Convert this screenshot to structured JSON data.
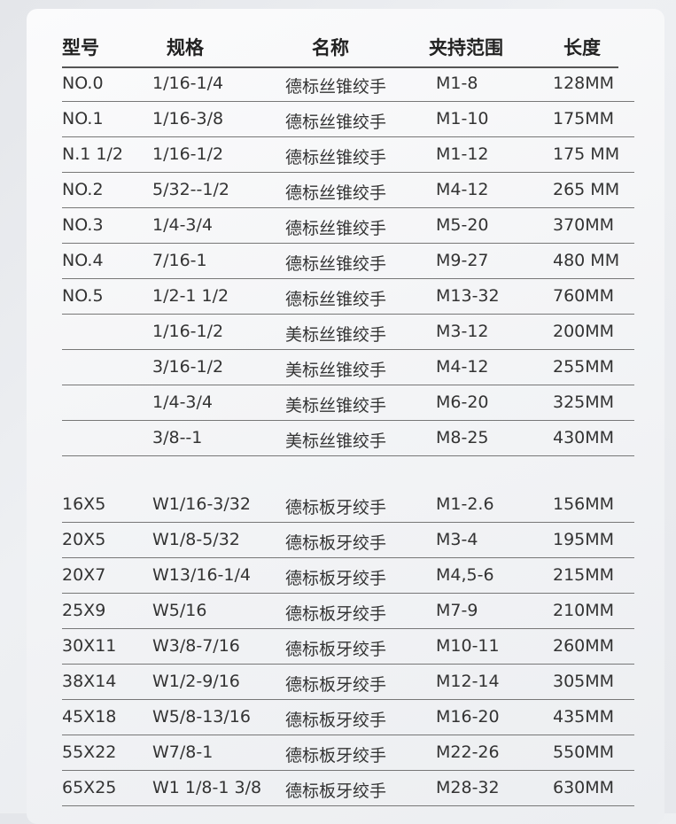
{
  "headers": [
    "型号",
    "规格",
    "名称",
    "夹持范围",
    "长度"
  ],
  "tap_wrenches": [
    [
      "NO.0",
      "1/16-1/4",
      "德标丝锥绞手",
      "M1-8",
      "128MM"
    ],
    [
      "NO.1",
      "1/16-3/8",
      "德标丝锥绞手",
      "M1-10",
      "175MM"
    ],
    [
      "N.1 1/2",
      "1/16-1/2",
      "德标丝锥绞手",
      "M1-12",
      "175 MM"
    ],
    [
      "NO.2",
      "5/32--1/2",
      "德标丝锥绞手",
      "M4-12",
      "265 MM"
    ],
    [
      "NO.3",
      "1/4-3/4",
      "德标丝锥绞手",
      "M5-20",
      "370MM"
    ],
    [
      "NO.4",
      "7/16-1",
      "德标丝锥绞手",
      "M9-27",
      "480 MM"
    ],
    [
      "NO.5",
      "1/2-1 1/2",
      "德标丝锥绞手",
      "M13-32",
      "760MM"
    ],
    [
      "",
      "1/16-1/2",
      "美标丝锥绞手",
      "M3-12",
      "200MM"
    ],
    [
      "",
      "3/16-1/2",
      "美标丝锥绞手",
      "M4-12",
      "255MM"
    ],
    [
      "",
      "1/4-3/4",
      "美标丝锥绞手",
      "M6-20",
      "325MM"
    ],
    [
      "",
      "3/8--1",
      "美标丝锥绞手",
      "M8-25",
      "430MM"
    ]
  ],
  "die_wrenches": [
    [
      "16X5",
      "W1/16-3/32",
      "德标板牙绞手",
      "M1-2.6",
      "156MM"
    ],
    [
      "20X5",
      "W1/8-5/32",
      "德标板牙绞手",
      "M3-4",
      "195MM"
    ],
    [
      "20X7",
      "W13/16-1/4",
      "德标板牙绞手",
      "M4,5-6",
      "215MM"
    ],
    [
      "25X9",
      "W5/16",
      "德标板牙绞手",
      "M7-9",
      "210MM"
    ],
    [
      "30X11",
      "W3/8-7/16",
      "德标板牙绞手",
      "M10-11",
      "260MM"
    ],
    [
      "38X14",
      "W1/2-9/16",
      "德标板牙绞手",
      "M12-14",
      "305MM"
    ],
    [
      "45X18",
      "W5/8-13/16",
      "德标板牙绞手",
      "M16-20",
      "435MM"
    ],
    [
      "55X22",
      "W7/8-1",
      "德标板牙绞手",
      "M22-26",
      "550MM"
    ],
    [
      "65X25",
      "W1 1/8-1 3/8",
      "德标板牙绞手",
      "M28-32",
      "630MM"
    ]
  ]
}
